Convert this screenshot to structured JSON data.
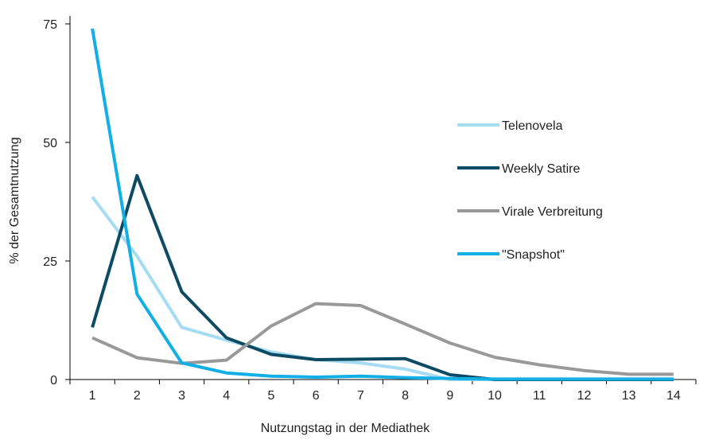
{
  "chart_data": {
    "type": "line",
    "title": "",
    "xlabel": "Nutzungstag in der Mediathek",
    "ylabel": "% der Gesamtnutzung",
    "x": [
      1,
      2,
      3,
      4,
      5,
      6,
      7,
      8,
      9,
      10,
      11,
      12,
      13,
      14
    ],
    "ylim": [
      0,
      75
    ],
    "yticks": [
      0,
      25,
      50,
      75
    ],
    "grid": false,
    "legend_position": "right",
    "series": [
      {
        "name": "Telenovela",
        "color": "#a6dcf2",
        "values": [
          38.5,
          26,
          11,
          8.3,
          5.8,
          4.2,
          3.5,
          2.2,
          0,
          0,
          0,
          0,
          0,
          0
        ]
      },
      {
        "name": "Weekly Satire",
        "color": "#0d4a63",
        "values": [
          11,
          43,
          18.5,
          8.8,
          5.3,
          4.2,
          4.3,
          4.4,
          1,
          0,
          0,
          0,
          0,
          0
        ]
      },
      {
        "name": "Virale Verbreitung",
        "color": "#999999",
        "values": [
          8.8,
          4.6,
          3.4,
          4.1,
          11.3,
          16,
          15.6,
          11.7,
          7.7,
          4.7,
          3.1,
          1.9,
          1.1,
          1.1
        ]
      },
      {
        "name": "\"Snapshot\"",
        "color": "#12aee6",
        "values": [
          74,
          18,
          3.5,
          1.4,
          0.7,
          0.5,
          0.7,
          0.4,
          0.2,
          0.1,
          0.1,
          0.1,
          0.1,
          0.1
        ]
      }
    ]
  }
}
